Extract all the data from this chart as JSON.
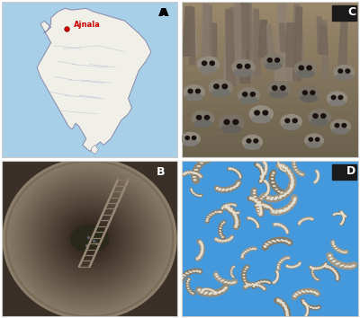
{
  "figure_width": 4.0,
  "figure_height": 3.54,
  "dpi": 100,
  "panel_label_fontsize": 9,
  "panel_label_color": "white",
  "panel_label_weight": "bold",
  "border_color": "#cccccc",
  "border_linewidth": 0.8,
  "label_A": "A",
  "label_B": "B",
  "label_C": "C",
  "label_D": "D",
  "ajnala_text": "Ajnala",
  "ajnala_color": "#cc0000",
  "ajnala_dot_color": "#cc0000",
  "map_bg_color": "#a8cfe8",
  "india_fill_color": "#f0f0e8",
  "india_border_color": "#8888aa",
  "label_A_color": "black",
  "label_bg_color": "#1a1a1a"
}
